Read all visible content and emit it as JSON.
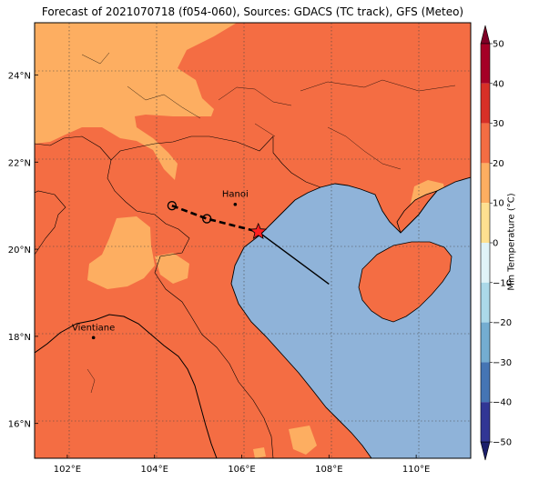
{
  "title": "Forecast of 2021070718 (f054-060), Sources: GDACS (TC track), GFS (Meteo)",
  "map": {
    "lon_range": [
      101.25,
      111.25
    ],
    "lat_range": [
      15.2,
      25.2
    ],
    "lon_ticks": [
      {
        "value": 102,
        "label": "102°E"
      },
      {
        "value": 104,
        "label": "104°E"
      },
      {
        "value": 106,
        "label": "106°E"
      },
      {
        "value": 108,
        "label": "108°E"
      },
      {
        "value": 110,
        "label": "110°E"
      }
    ],
    "lat_ticks": [
      {
        "value": 16,
        "label": "16°N"
      },
      {
        "value": 18,
        "label": "18°N"
      },
      {
        "value": 20,
        "label": "20°N"
      },
      {
        "value": 22,
        "label": "22°N"
      },
      {
        "value": 24,
        "label": "24°N"
      }
    ],
    "gridlines": true,
    "colors": {
      "band_20_30": "#f46d43",
      "band_10_20": "#fdae61",
      "band_0_10": "#fee090",
      "sea": "#8fb3d9",
      "coast": "#000000",
      "track": "#000000",
      "star": "#ff2020"
    },
    "places": [
      {
        "name": "Hanoi",
        "lon": 105.85,
        "lat": 21.03
      },
      {
        "name": "Vientiane",
        "lon": 102.6,
        "lat": 17.97
      }
    ],
    "track": {
      "past_line": [
        {
          "lon": 106.38,
          "lat": 20.4
        },
        {
          "lon": 108.0,
          "lat": 19.2
        }
      ],
      "forecast_points": [
        {
          "lon": 104.4,
          "lat": 21.0
        },
        {
          "lon": 105.2,
          "lat": 20.7
        }
      ],
      "current": {
        "lon": 106.38,
        "lat": 20.4
      }
    }
  },
  "colorbar": {
    "label": "Min Temperature (°C)",
    "ticks": [
      50,
      40,
      30,
      20,
      10,
      0,
      -10,
      -20,
      -30,
      -40,
      -50
    ],
    "bands": [
      {
        "from": 40,
        "to": 50,
        "color": "#a50026"
      },
      {
        "from": 30,
        "to": 40,
        "color": "#d73027"
      },
      {
        "from": 20,
        "to": 30,
        "color": "#f46d43"
      },
      {
        "from": 10,
        "to": 20,
        "color": "#fdae61"
      },
      {
        "from": 0,
        "to": 10,
        "color": "#fee090"
      },
      {
        "from": -10,
        "to": 0,
        "color": "#e0f3f8"
      },
      {
        "from": -20,
        "to": -10,
        "color": "#abd9e9"
      },
      {
        "from": -30,
        "to": -20,
        "color": "#74add1"
      },
      {
        "from": -40,
        "to": -30,
        "color": "#4575b4"
      },
      {
        "from": -50,
        "to": -40,
        "color": "#313695"
      }
    ],
    "extend_top_color": "#7f0026",
    "extend_bottom_color": "#1b1f6b"
  }
}
